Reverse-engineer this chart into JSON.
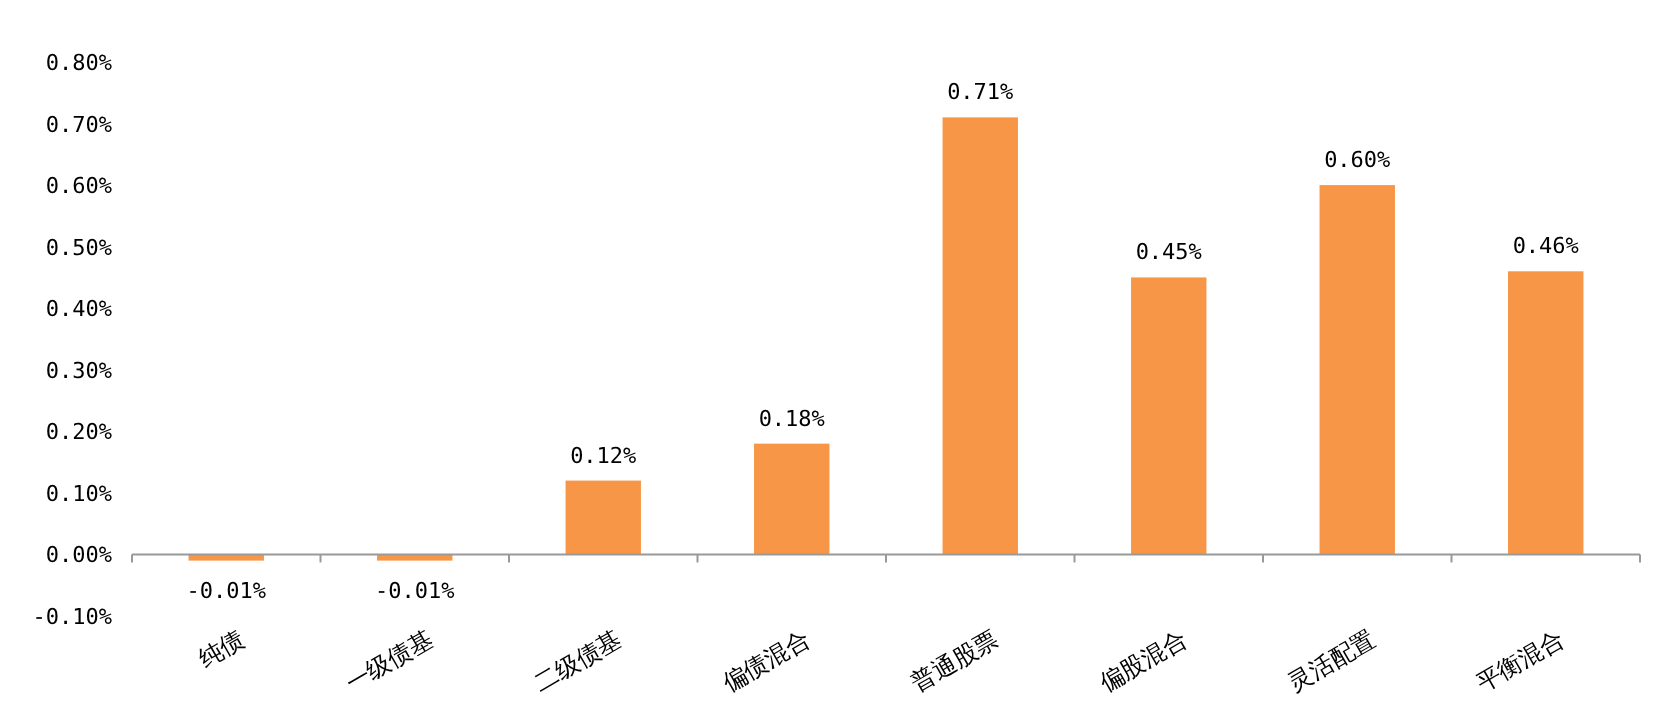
{
  "chart_data": {
    "type": "bar",
    "categories": [
      "纯债",
      "一级债基",
      "二级债基",
      "偏债混合",
      "普通股票",
      "偏股混合",
      "灵活配置",
      "平衡混合"
    ],
    "values": [
      -0.01,
      -0.01,
      0.12,
      0.18,
      0.71,
      0.45,
      0.6,
      0.46
    ],
    "value_labels": [
      "-0.01%",
      "-0.01%",
      "0.12%",
      "0.18%",
      "0.71%",
      "0.45%",
      "0.60%",
      "0.46%"
    ],
    "color": "#f79646",
    "ylim": [
      -0.1,
      0.8
    ],
    "yticks": [
      {
        "value": -0.1,
        "label": "-0.10%"
      },
      {
        "value": 0,
        "label": "0.00%"
      },
      {
        "value": 0.1,
        "label": "0.10%"
      },
      {
        "value": 0.2,
        "label": "0.20%"
      },
      {
        "value": 0.3,
        "label": "0.30%"
      },
      {
        "value": 0.4,
        "label": "0.40%"
      },
      {
        "value": 0.5,
        "label": "0.50%"
      },
      {
        "value": 0.6,
        "label": "0.60%"
      },
      {
        "value": 0.7,
        "label": "0.70%"
      },
      {
        "value": 0.8,
        "label": "0.80%"
      }
    ],
    "legend": false
  }
}
